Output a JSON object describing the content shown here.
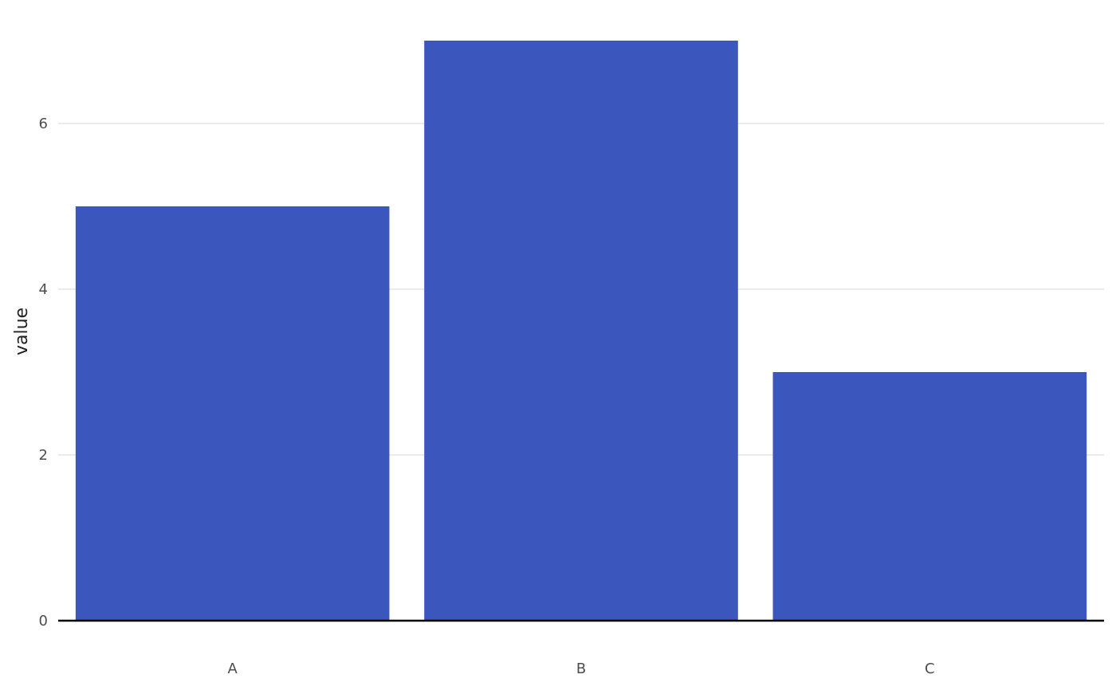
{
  "chart_data": {
    "type": "bar",
    "title": "",
    "xlabel": "",
    "ylabel": "value",
    "categories": [
      "A",
      "B",
      "C"
    ],
    "values": [
      5,
      7,
      3
    ],
    "ylim": [
      0,
      7.35
    ],
    "yticks": [
      0,
      2,
      4,
      6
    ],
    "grid": "horizontal",
    "legend": "none",
    "colors": {
      "bar": "#3b57bd",
      "grid": "#ebebeb",
      "baseline": "#000000"
    }
  }
}
